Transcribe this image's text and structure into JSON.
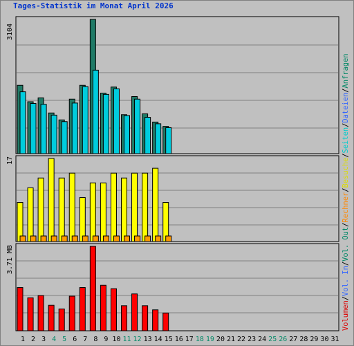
{
  "colors": {
    "hits": "#1f7a66",
    "files": "#00ccdd",
    "pages": "#00e5ee",
    "visits": "#ffff00",
    "sites": "#ff9900",
    "kbytes": "#ff0000",
    "title": "#0033cc",
    "weekend": "#008866",
    "grid": "#808080"
  },
  "chart_data": {
    "type": "bar",
    "title": "Tages-Statistik im Monat April 2026",
    "days": [
      "1",
      "2",
      "3",
      "4",
      "5",
      "6",
      "7",
      "8",
      "9",
      "10",
      "11",
      "12",
      "13",
      "14",
      "15",
      "16",
      "17",
      "18",
      "19",
      "20",
      "21",
      "22",
      "23",
      "24",
      "25",
      "26",
      "27",
      "28",
      "29",
      "30",
      "31"
    ],
    "weekend_days": [
      "4",
      "5",
      "11",
      "12",
      "18",
      "19",
      "25",
      "26"
    ],
    "panels": [
      {
        "id": "top",
        "ymax_label": "3104",
        "ymax": 3104,
        "series": [
          {
            "key": "hits",
            "name": "Anfragen",
            "values": [
              1580,
              1200,
              1290,
              940,
              780,
              1260,
              1580,
              3104,
              1400,
              1540,
              900,
              1320,
              920,
              730,
              630,
              null,
              null,
              null,
              null,
              null,
              null,
              null,
              null,
              null,
              null,
              null,
              null,
              null,
              null,
              null,
              null
            ]
          },
          {
            "key": "files",
            "name": "Dateien",
            "values": [
              1430,
              1160,
              1140,
              890,
              740,
              1170,
              1550,
              1930,
              1370,
              1500,
              880,
              1260,
              840,
              690,
              600,
              null,
              null,
              null,
              null,
              null,
              null,
              null,
              null,
              null,
              null,
              null,
              null,
              null,
              null,
              null,
              null
            ]
          },
          {
            "key": "pages",
            "name": "Seiten",
            "values": [
              null,
              null,
              null,
              null,
              null,
              null,
              null,
              null,
              null,
              null,
              null,
              null,
              null,
              null,
              null,
              null,
              null,
              null,
              null,
              null,
              null,
              null,
              null,
              null,
              null,
              null,
              null,
              null,
              null,
              null,
              null
            ]
          }
        ],
        "legend": [
          "Anfragen",
          "Dateien",
          "Seiten"
        ]
      },
      {
        "id": "middle",
        "ymax_label": "17",
        "ymax": 17,
        "series": [
          {
            "key": "visits",
            "name": "Besuche",
            "values": [
              8,
              11,
              13,
              17,
              13,
              14,
              9,
              12,
              12,
              14,
              13,
              14,
              14,
              15,
              8,
              null,
              null,
              null,
              null,
              null,
              null,
              null,
              null,
              null,
              null,
              null,
              null,
              null,
              null,
              null,
              null
            ]
          },
          {
            "key": "sites",
            "name": "Rechner",
            "values": [
              1,
              1,
              1,
              1,
              1,
              1,
              1,
              1,
              1,
              1,
              1,
              1,
              1,
              1,
              1,
              null,
              null,
              null,
              null,
              null,
              null,
              null,
              null,
              null,
              null,
              null,
              null,
              null,
              null,
              null,
              null
            ]
          }
        ],
        "legend": [
          "Besuche",
          "Rechner"
        ]
      },
      {
        "id": "bottom",
        "ymax_label": "3.71 MB",
        "ymax": 3.71,
        "series": [
          {
            "key": "kbytes",
            "name": "Volumen",
            "values": [
              1.9,
              1.45,
              1.55,
              1.12,
              0.96,
              1.52,
              1.9,
              3.71,
              2.0,
              1.85,
              1.1,
              1.62,
              1.1,
              0.92,
              0.78,
              null,
              null,
              null,
              null,
              null,
              null,
              null,
              null,
              null,
              null,
              null,
              null,
              null,
              null,
              null,
              null
            ]
          }
        ],
        "legend": [
          "Volumen",
          "Vol. In",
          "Vol. Out"
        ]
      }
    ]
  },
  "right_legend": [
    {
      "text": "Volumen",
      "color": "#dd0000"
    },
    {
      "text": "/",
      "color": "#000000"
    },
    {
      "text": "Vol. In",
      "color": "#3366ff"
    },
    {
      "text": "/",
      "color": "#000000"
    },
    {
      "text": "Vol. Out",
      "color": "#008866"
    },
    {
      "text": "/",
      "color": "#000000"
    },
    {
      "text": "Rechner",
      "color": "#ff8800"
    },
    {
      "text": "/",
      "color": "#000000"
    },
    {
      "text": "Besuche",
      "color": "#dddd00"
    },
    {
      "text": "/",
      "color": "#000000"
    },
    {
      "text": "Seiten",
      "color": "#00cccc"
    },
    {
      "text": "/",
      "color": "#000000"
    },
    {
      "text": "Dateien",
      "color": "#3366ff"
    },
    {
      "text": "/",
      "color": "#000000"
    },
    {
      "text": "Anfragen",
      "color": "#008866"
    }
  ]
}
